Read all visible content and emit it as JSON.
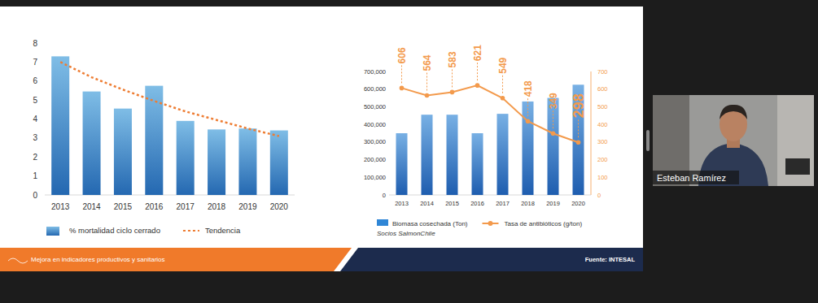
{
  "chart_data": [
    {
      "type": "bar",
      "categories": [
        "2013",
        "2014",
        "2015",
        "2016",
        "2017",
        "2018",
        "2019",
        "2020"
      ],
      "series": [
        {
          "name": "% mortalidad ciclo cerrado",
          "type": "bar",
          "color": "#3a9ad9",
          "values": [
            7.3,
            5.45,
            4.55,
            5.75,
            3.9,
            3.45,
            3.5,
            3.4
          ]
        },
        {
          "name": "Tendencia",
          "type": "line",
          "color": "#ee7d33",
          "line_style": "dotted",
          "values": [
            7.0,
            6.2,
            5.55,
            4.95,
            4.4,
            3.95,
            3.5,
            3.1
          ]
        }
      ],
      "ylim": [
        0,
        8
      ],
      "yticks": [
        0,
        1,
        2,
        3,
        4,
        5,
        6,
        7,
        8
      ],
      "grid": false,
      "legend": "bottom"
    },
    {
      "type": "bar",
      "subtitle": "Socios SalmonChile",
      "categories": [
        "2013",
        "2014",
        "2015",
        "2016",
        "2017",
        "2018",
        "2019",
        "2020"
      ],
      "series": [
        {
          "name": "Biomasa cosechada (Ton)",
          "type": "bar",
          "color": "#2f86d6",
          "values": [
            350000,
            455000,
            455000,
            350000,
            460000,
            530000,
            550000,
            625000
          ]
        },
        {
          "name": "Tasa de antibióticos (g/ton)",
          "type": "line",
          "axis": "y2",
          "color": "#f39a4c",
          "marker": "circle",
          "data_labels": true,
          "values": [
            606,
            564,
            583,
            621,
            549,
            418,
            349,
            298
          ]
        }
      ],
      "ylim": [
        0,
        700000
      ],
      "yticks": [
        0,
        {
          "value": 100000,
          "label": "100,000"
        },
        {
          "value": 200000,
          "label": "200,000"
        },
        {
          "value": 300000,
          "label": "300,000"
        },
        {
          "value": 400000,
          "label": "400,000"
        },
        {
          "value": 500000,
          "label": "500,000"
        },
        {
          "value": 600000,
          "label": "600,000"
        },
        {
          "value": 700000,
          "label": "700,000"
        }
      ],
      "y2lim": [
        0,
        700
      ],
      "y2ticks": [
        0,
        100,
        200,
        300,
        400,
        500,
        600,
        700
      ],
      "grid": false,
      "legend": "bottom"
    }
  ],
  "slide": {
    "footer": "Mejora en indicadores productivos y sanitarios",
    "source": "Fuente: INTESAL"
  },
  "participant": {
    "name": "Esteban Ramírez"
  }
}
